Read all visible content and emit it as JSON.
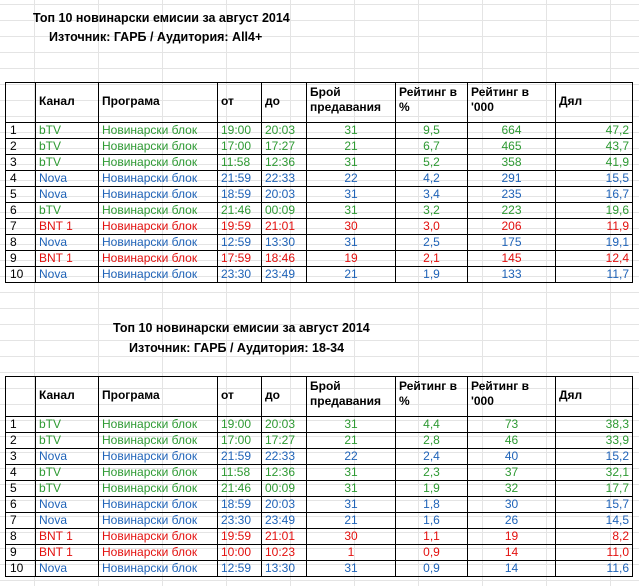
{
  "table1": {
    "title": "Топ 10 новинарски емисии за август 2014",
    "subtitle": "Източник: ГАРБ / Аудитория: All4+",
    "headers": {
      "channel": "Канал",
      "program": "Програма",
      "from": "от",
      "to": "до",
      "count": "Брой предавания",
      "rating_pct": "Рейтинг в %",
      "rating_k": "Рейтинг в '000",
      "share": "Дял"
    },
    "rows": [
      {
        "n": "1",
        "channel": "bTV",
        "program": "Новинарски блок",
        "from": "19:00",
        "to": "20:03",
        "count": "31",
        "rating_pct": "9,5",
        "rating_k": "664",
        "share": "47,2",
        "color": "green"
      },
      {
        "n": "2",
        "channel": "bTV",
        "program": "Новинарски блок",
        "from": "17:00",
        "to": "17:27",
        "count": "21",
        "rating_pct": "6,7",
        "rating_k": "465",
        "share": "43,7",
        "color": "green"
      },
      {
        "n": "3",
        "channel": "bTV",
        "program": "Новинарски блок",
        "from": "11:58",
        "to": "12:36",
        "count": "31",
        "rating_pct": "5,2",
        "rating_k": "358",
        "share": "41,9",
        "color": "green"
      },
      {
        "n": "4",
        "channel": "Nova",
        "program": "Новинарски блок",
        "from": "21:59",
        "to": "22:33",
        "count": "22",
        "rating_pct": "4,2",
        "rating_k": "291",
        "share": "15,5",
        "color": "blue"
      },
      {
        "n": "5",
        "channel": "Nova",
        "program": "Новинарски блок",
        "from": "18:59",
        "to": "20:03",
        "count": "31",
        "rating_pct": "3,4",
        "rating_k": "235",
        "share": "16,7",
        "color": "blue"
      },
      {
        "n": "6",
        "channel": "bTV",
        "program": "Новинарски блок",
        "from": "21:46",
        "to": "00:09",
        "count": "31",
        "rating_pct": "3,2",
        "rating_k": "223",
        "share": "19,6",
        "color": "green"
      },
      {
        "n": "7",
        "channel": "BNT 1",
        "program": "Новинарски блок",
        "from": "19:59",
        "to": "21:01",
        "count": "30",
        "rating_pct": "3,0",
        "rating_k": "206",
        "share": "11,9",
        "color": "red"
      },
      {
        "n": "8",
        "channel": "Nova",
        "program": "Новинарски блок",
        "from": "12:59",
        "to": "13:30",
        "count": "31",
        "rating_pct": "2,5",
        "rating_k": "175",
        "share": "19,1",
        "color": "blue"
      },
      {
        "n": "9",
        "channel": "BNT 1",
        "program": "Новинарски блок",
        "from": "17:59",
        "to": "18:46",
        "count": "19",
        "rating_pct": "2,1",
        "rating_k": "145",
        "share": "12,4",
        "color": "red"
      },
      {
        "n": "10",
        "channel": "Nova",
        "program": "Новинарски блок",
        "from": "23:30",
        "to": "23:49",
        "count": "21",
        "rating_pct": "1,9",
        "rating_k": "133",
        "share": "11,7",
        "color": "blue"
      }
    ]
  },
  "table2": {
    "title": "Топ 10 новинарски емисии за август 2014",
    "subtitle": "Източник: ГАРБ / Аудитория: 18-34",
    "headers": {
      "channel": "Канал",
      "program": "Програма",
      "from": "от",
      "to": "до",
      "count": "Брой предавания",
      "rating_pct": "Рейтинг в %",
      "rating_k": "Рейтинг в '000",
      "share": "Дял"
    },
    "rows": [
      {
        "n": "1",
        "channel": "bTV",
        "program": "Новинарски блок",
        "from": "19:00",
        "to": "20:03",
        "count": "31",
        "rating_pct": "4,4",
        "rating_k": "73",
        "share": "38,3",
        "color": "green"
      },
      {
        "n": "2",
        "channel": "bTV",
        "program": "Новинарски блок",
        "from": "17:00",
        "to": "17:27",
        "count": "21",
        "rating_pct": "2,8",
        "rating_k": "46",
        "share": "33,9",
        "color": "green"
      },
      {
        "n": "3",
        "channel": "Nova",
        "program": "Новинарски блок",
        "from": "21:59",
        "to": "22:33",
        "count": "22",
        "rating_pct": "2,4",
        "rating_k": "40",
        "share": "15,2",
        "color": "blue"
      },
      {
        "n": "4",
        "channel": "bTV",
        "program": "Новинарски блок",
        "from": "11:58",
        "to": "12:36",
        "count": "31",
        "rating_pct": "2,3",
        "rating_k": "37",
        "share": "32,1",
        "color": "green"
      },
      {
        "n": "5",
        "channel": "bTV",
        "program": "Новинарски блок",
        "from": "21:46",
        "to": "00:09",
        "count": "31",
        "rating_pct": "1,9",
        "rating_k": "32",
        "share": "17,7",
        "color": "green"
      },
      {
        "n": "6",
        "channel": "Nova",
        "program": "Новинарски блок",
        "from": "18:59",
        "to": "20:03",
        "count": "31",
        "rating_pct": "1,8",
        "rating_k": "30",
        "share": "15,7",
        "color": "blue"
      },
      {
        "n": "7",
        "channel": "Nova",
        "program": "Новинарски блок",
        "from": "23:30",
        "to": "23:49",
        "count": "21",
        "rating_pct": "1,6",
        "rating_k": "26",
        "share": "14,5",
        "color": "blue"
      },
      {
        "n": "8",
        "channel": "BNT 1",
        "program": "Новинарски блок",
        "from": "19:59",
        "to": "21:01",
        "count": "30",
        "rating_pct": "1,1",
        "rating_k": "19",
        "share": "8,2",
        "color": "red"
      },
      {
        "n": "9",
        "channel": "BNT 1",
        "program": "Новинарски блок",
        "from": "10:00",
        "to": "10:23",
        "count": "1",
        "rating_pct": "0,9",
        "rating_k": "14",
        "share": "11,0",
        "color": "red"
      },
      {
        "n": "10",
        "channel": "Nova",
        "program": "Новинарски блок",
        "from": "12:59",
        "to": "13:30",
        "count": "31",
        "rating_pct": "0,9",
        "rating_k": "14",
        "share": "11,6",
        "color": "blue"
      }
    ]
  },
  "colors": {
    "green": "#2e9a33",
    "blue": "#1f63b8",
    "red": "#e3100e"
  }
}
